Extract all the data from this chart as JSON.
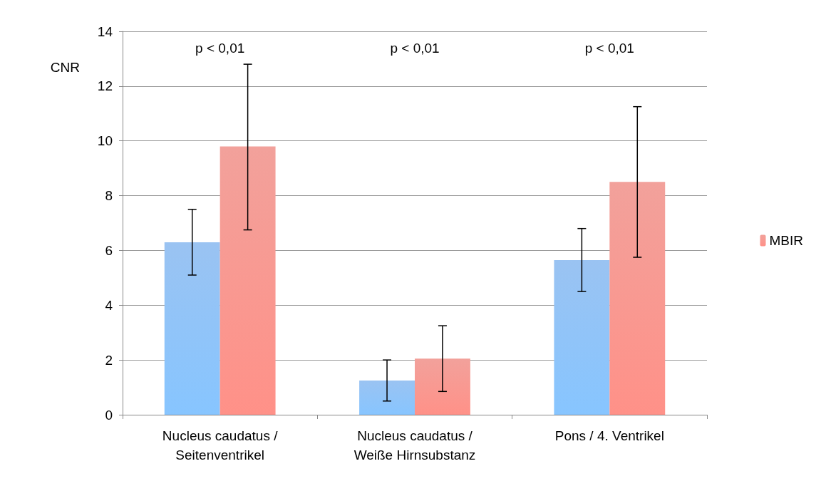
{
  "chart_data": {
    "type": "bar",
    "ylabel": "CNR",
    "categories": [
      "Nucleus caudatus /\nSeitenventrikel",
      "Nucleus caudatus /\nWeiße Hirnsubstanz",
      "Pons / 4. Ventrikel"
    ],
    "series": [
      {
        "color": "#79b0ee",
        "values": [
          6.3,
          1.25,
          5.65
        ],
        "errors": [
          [
            5.1,
            7.5
          ],
          [
            0.5,
            2.0
          ],
          [
            4.5,
            6.8
          ]
        ]
      },
      {
        "name": "MBIR",
        "color": "#ee827a",
        "values": [
          9.8,
          2.05,
          8.5
        ],
        "errors": [
          [
            6.75,
            12.8
          ],
          [
            0.85,
            3.25
          ],
          [
            5.75,
            11.25
          ]
        ]
      }
    ],
    "ylim": [
      0,
      14
    ],
    "yticks": [
      0,
      2,
      4,
      6,
      8,
      10,
      12,
      14
    ],
    "grid": "y",
    "legend": "right",
    "annotations": [
      "p < 0,01",
      "p < 0,01",
      "p < 0,01"
    ]
  }
}
